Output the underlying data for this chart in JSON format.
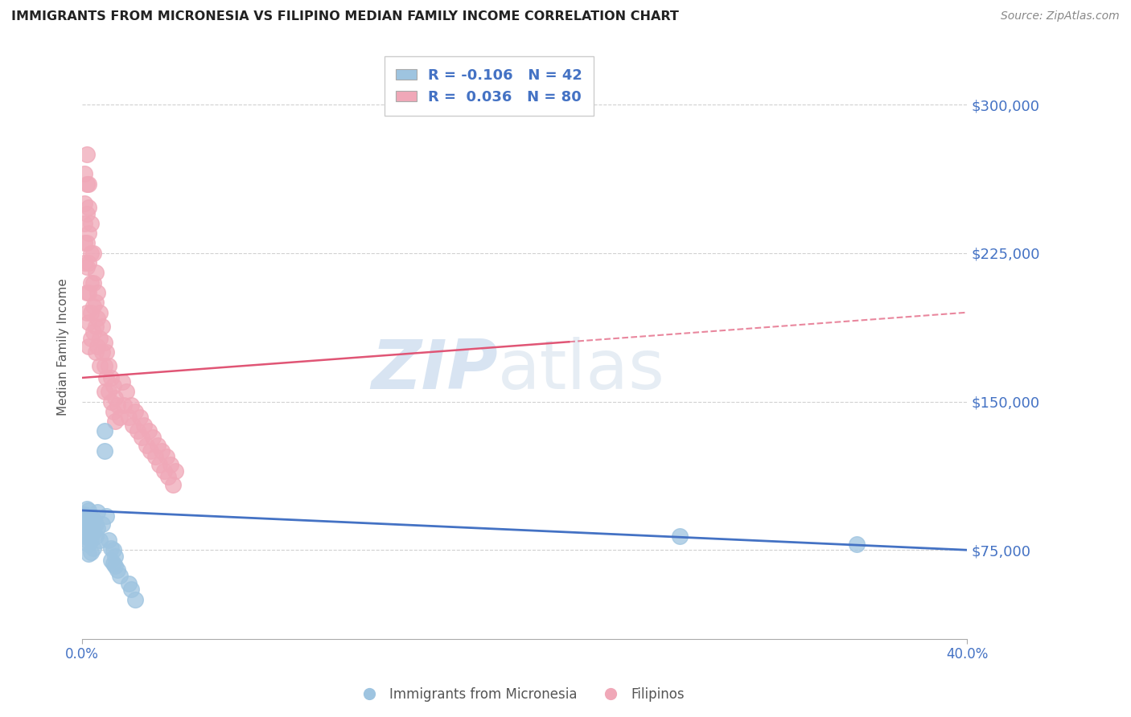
{
  "title": "IMMIGRANTS FROM MICRONESIA VS FILIPINO MEDIAN FAMILY INCOME CORRELATION CHART",
  "source": "Source: ZipAtlas.com",
  "ylabel": "Median Family Income",
  "yticks": [
    75000,
    150000,
    225000,
    300000
  ],
  "ytick_labels": [
    "$75,000",
    "$150,000",
    "$225,000",
    "$300,000"
  ],
  "xlim": [
    0.0,
    0.4
  ],
  "ylim": [
    30000,
    325000
  ],
  "blue_color": "#9ec4e0",
  "pink_color": "#f0a8b8",
  "blue_line_color": "#4472c4",
  "pink_line_color": "#e05575",
  "legend_R1": "R = -0.106",
  "legend_N1": "N = 42",
  "legend_R2": "R =  0.036",
  "legend_N2": "N = 80",
  "label1": "Immigrants from Micronesia",
  "label2": "Filipinos",
  "watermark_zip": "ZIP",
  "watermark_atlas": "atlas",
  "blue_x": [
    0.001,
    0.001,
    0.001,
    0.002,
    0.002,
    0.002,
    0.002,
    0.003,
    0.003,
    0.003,
    0.003,
    0.003,
    0.004,
    0.004,
    0.004,
    0.004,
    0.005,
    0.005,
    0.005,
    0.006,
    0.006,
    0.007,
    0.007,
    0.008,
    0.009,
    0.01,
    0.01,
    0.011,
    0.012,
    0.013,
    0.013,
    0.014,
    0.014,
    0.015,
    0.015,
    0.016,
    0.017,
    0.021,
    0.022,
    0.024,
    0.27,
    0.35
  ],
  "blue_y": [
    93000,
    88000,
    82000,
    96000,
    91000,
    86000,
    80000,
    95000,
    88000,
    83000,
    78000,
    73000,
    92000,
    86000,
    80000,
    74000,
    90000,
    84000,
    76000,
    88000,
    82000,
    94000,
    86000,
    80000,
    88000,
    135000,
    125000,
    92000,
    80000,
    76000,
    70000,
    75000,
    68000,
    72000,
    67000,
    65000,
    62000,
    58000,
    55000,
    50000,
    82000,
    78000
  ],
  "pink_x": [
    0.001,
    0.001,
    0.001,
    0.001,
    0.001,
    0.002,
    0.002,
    0.002,
    0.002,
    0.002,
    0.002,
    0.002,
    0.003,
    0.003,
    0.003,
    0.003,
    0.003,
    0.003,
    0.003,
    0.004,
    0.004,
    0.004,
    0.004,
    0.004,
    0.005,
    0.005,
    0.005,
    0.005,
    0.006,
    0.006,
    0.006,
    0.006,
    0.007,
    0.007,
    0.007,
    0.008,
    0.008,
    0.008,
    0.009,
    0.009,
    0.01,
    0.01,
    0.01,
    0.011,
    0.011,
    0.012,
    0.012,
    0.013,
    0.013,
    0.014,
    0.014,
    0.015,
    0.015,
    0.016,
    0.017,
    0.018,
    0.019,
    0.02,
    0.021,
    0.022,
    0.023,
    0.024,
    0.025,
    0.026,
    0.027,
    0.028,
    0.029,
    0.03,
    0.031,
    0.032,
    0.033,
    0.034,
    0.035,
    0.036,
    0.037,
    0.038,
    0.039,
    0.04,
    0.041,
    0.042
  ],
  "pink_y": [
    265000,
    250000,
    240000,
    230000,
    220000,
    275000,
    260000,
    245000,
    230000,
    218000,
    205000,
    195000,
    260000,
    248000,
    235000,
    220000,
    205000,
    190000,
    178000,
    240000,
    225000,
    210000,
    195000,
    182000,
    225000,
    210000,
    198000,
    185000,
    215000,
    200000,
    188000,
    175000,
    205000,
    192000,
    178000,
    195000,
    182000,
    168000,
    188000,
    175000,
    180000,
    168000,
    155000,
    175000,
    162000,
    168000,
    155000,
    162000,
    150000,
    158000,
    145000,
    152000,
    140000,
    148000,
    142000,
    160000,
    148000,
    155000,
    142000,
    148000,
    138000,
    145000,
    135000,
    142000,
    132000,
    138000,
    128000,
    135000,
    125000,
    132000,
    122000,
    128000,
    118000,
    125000,
    115000,
    122000,
    112000,
    118000,
    108000,
    115000
  ],
  "blue_trend": [
    95000,
    75000
  ],
  "pink_trend_solid_end": 0.22,
  "pink_trend": [
    162000,
    195000
  ]
}
